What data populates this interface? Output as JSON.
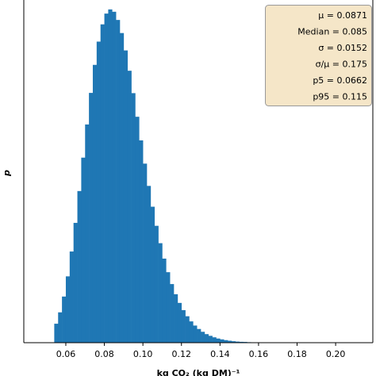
{
  "chart_data": {
    "type": "histogram",
    "xlabel": "kg CO₂ (kg DM)⁻¹",
    "ylabel": "p",
    "color": "#1f77b4",
    "bins": [
      0.054,
      0.056,
      0.058,
      0.06,
      0.062,
      0.064,
      0.066,
      0.068,
      0.07,
      0.072,
      0.074,
      0.076,
      0.078,
      0.08,
      0.082,
      0.084,
      0.086,
      0.088,
      0.09,
      0.092,
      0.094,
      0.096,
      0.098,
      0.1,
      0.102,
      0.104,
      0.106,
      0.108,
      0.11,
      0.112,
      0.114,
      0.116,
      0.118,
      0.12,
      0.122,
      0.124,
      0.126,
      0.128,
      0.13,
      0.132,
      0.134,
      0.136,
      0.138,
      0.14,
      0.142,
      0.144,
      0.146,
      0.148,
      0.15,
      0.152,
      0.154,
      0.156,
      0.158,
      0.16,
      0.162,
      0.164
    ],
    "values": [
      1.55,
      2.48,
      3.77,
      5.42,
      7.45,
      9.79,
      12.39,
      15.12,
      17.83,
      20.41,
      22.7,
      24.6,
      26.01,
      26.89,
      27.23,
      27.04,
      26.37,
      25.3,
      23.88,
      22.22,
      20.39,
      18.46,
      16.53,
      14.63,
      12.81,
      11.11,
      9.55,
      8.13,
      6.87,
      5.76,
      4.79,
      3.96,
      3.25,
      2.66,
      2.16,
      1.74,
      1.4,
      1.12,
      0.89,
      0.7,
      0.56,
      0.44,
      0.34,
      0.27,
      0.21,
      0.16,
      0.12,
      0.09,
      0.07,
      0.06,
      0.04,
      0.03,
      0.03,
      0.02,
      0.02
    ],
    "xlim": [
      0.0382,
      0.2193
    ],
    "ylim": [
      0,
      28
    ],
    "xticks": [
      0.06,
      0.08,
      {
        "value": 0.1,
        "label": "0.10"
      },
      0.12,
      0.14,
      0.16,
      0.18,
      {
        "value": 0.2,
        "label": "0.20"
      }
    ],
    "stats": [
      "μ = 0.0871",
      "Median = 0.085",
      "σ = 0.0152",
      "σ/μ = 0.175",
      "p5 = 0.0662",
      "p95 = 0.115"
    ]
  }
}
